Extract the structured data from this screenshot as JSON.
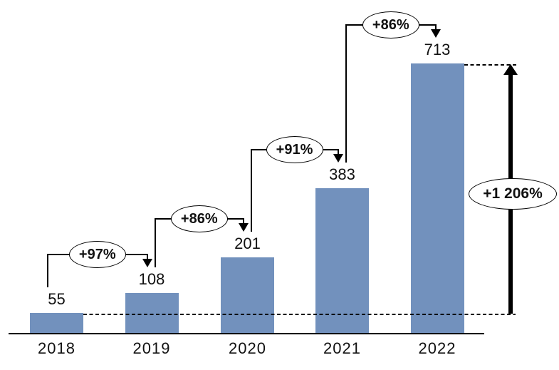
{
  "chart_data": {
    "type": "bar",
    "title": "",
    "categories": [
      "2018",
      "2019",
      "2020",
      "2021",
      "2022"
    ],
    "values": [
      55,
      108,
      201,
      383,
      713
    ],
    "value_labels": [
      "55",
      "108",
      "201",
      "383",
      "713"
    ],
    "growth_annotations": [
      {
        "from": "2018",
        "to": "2019",
        "label": "+97%"
      },
      {
        "from": "2019",
        "to": "2020",
        "label": "+86%"
      },
      {
        "from": "2020",
        "to": "2021",
        "label": "+91%"
      },
      {
        "from": "2021",
        "to": "2022",
        "label": "+86%"
      }
    ],
    "total_growth": {
      "from": "2018",
      "to": "2022",
      "label": "+1 206%"
    },
    "xlabel": "",
    "ylabel": "",
    "ylim": [
      0,
      760
    ],
    "grid": false,
    "legend": false,
    "colors": {
      "bar": "#7291BD",
      "line": "#000000",
      "background": "#FFFFFF",
      "text": "#111111"
    }
  }
}
